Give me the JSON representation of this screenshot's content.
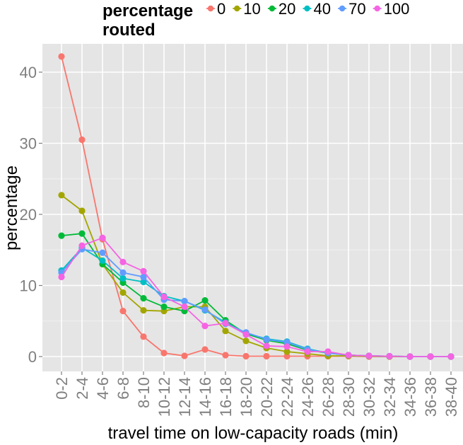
{
  "chart_data": {
    "type": "line",
    "title": "",
    "xlabel": "travel time on low-capacity roads (min)",
    "ylabel": "percentage",
    "ylim": [
      -2,
      44
    ],
    "yticks": [
      0,
      10,
      20,
      30,
      40
    ],
    "categories": [
      "0-2",
      "2-4",
      "4-6",
      "6-8",
      "8-10",
      "10-12",
      "12-14",
      "14-16",
      "16-18",
      "18-20",
      "20-22",
      "22-24",
      "24-26",
      "26-28",
      "28-30",
      "30-32",
      "32-34",
      "34-36",
      "36-38",
      "38-40"
    ],
    "legend": {
      "title_line1": "percentage",
      "title_line2": "routed",
      "position": "top"
    },
    "grid": true,
    "series": [
      {
        "name": "0",
        "color": "#F8766D",
        "values": [
          42.2,
          30.5,
          16.5,
          6.4,
          2.8,
          0.5,
          0.1,
          1.0,
          0.2,
          0.05,
          0.05,
          0.05,
          0.05,
          0.05,
          0.05,
          0.0,
          0.0,
          0.0,
          0.0,
          0.0
        ]
      },
      {
        "name": "10",
        "color": "#A3A500",
        "values": [
          22.7,
          20.5,
          13.0,
          9.0,
          6.5,
          6.4,
          7.0,
          7.0,
          3.6,
          2.2,
          1.2,
          0.7,
          0.4,
          0.1,
          0.1,
          0.05,
          0.0,
          0.0,
          0.0,
          0.0
        ]
      },
      {
        "name": "20",
        "color": "#00BA38",
        "values": [
          17.0,
          17.3,
          13.0,
          10.4,
          8.2,
          7.0,
          6.4,
          7.9,
          5.1,
          3.2,
          2.3,
          1.8,
          0.9,
          0.5,
          0.2,
          0.1,
          0.05,
          0.0,
          0.0,
          0.0
        ]
      },
      {
        "name": "40",
        "color": "#00BFC4",
        "values": [
          12.1,
          15.3,
          13.5,
          11.0,
          10.5,
          8.5,
          7.8,
          6.5,
          4.8,
          3.3,
          2.5,
          2.1,
          1.1,
          0.5,
          0.2,
          0.1,
          0.05,
          0.0,
          0.0,
          0.0
        ]
      },
      {
        "name": "70",
        "color": "#619CFF",
        "values": [
          11.8,
          15.1,
          14.6,
          11.8,
          11.2,
          8.0,
          7.8,
          6.6,
          4.6,
          3.4,
          2.4,
          2.0,
          1.0,
          0.5,
          0.2,
          0.1,
          0.05,
          0.0,
          0.0,
          0.0
        ]
      },
      {
        "name": "100",
        "color": "#F564E3",
        "values": [
          11.2,
          15.6,
          16.7,
          13.3,
          12.0,
          8.4,
          7.0,
          4.3,
          4.7,
          3.1,
          1.5,
          1.4,
          0.7,
          0.7,
          0.2,
          0.1,
          0.05,
          0.0,
          0.0,
          0.0
        ]
      }
    ]
  }
}
